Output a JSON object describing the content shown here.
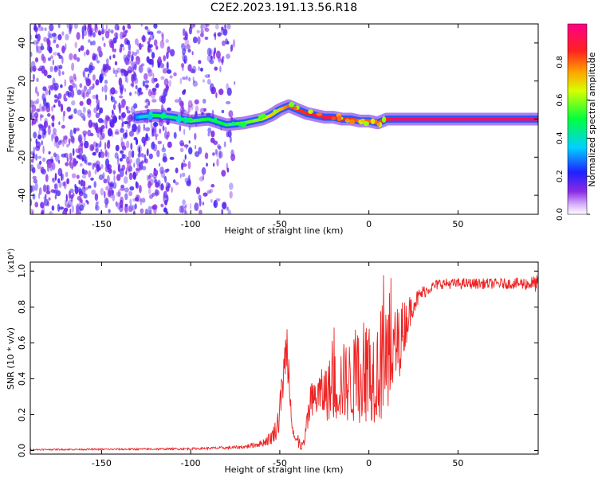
{
  "title": "C2E2.2023.191.13.56.R18",
  "chart_data": [
    {
      "type": "heatmap",
      "title": "C2E2.2023.191.13.56.R18",
      "xlabel": "Height of straight line (km)",
      "ylabel": "Frequency (Hz)",
      "xlim": [
        -190,
        95
      ],
      "ylim": [
        -50,
        50
      ],
      "xticks": [
        -150,
        -100,
        -50,
        0,
        50
      ],
      "yticks": [
        -40,
        -20,
        0,
        20,
        40
      ],
      "xtick_labels": [
        "-150",
        "-100",
        "-50",
        "0",
        "50"
      ],
      "ytick_labels": [
        "-40",
        "-20",
        "0",
        "20",
        "40"
      ],
      "colorbar": {
        "label": "Normalized spectral amplitude",
        "range": [
          0,
          1
        ],
        "ticks": [
          0.0,
          0.2,
          0.4,
          0.6,
          0.8
        ],
        "tick_labels": [
          "0.0",
          "0.2",
          "0.4",
          "0.6",
          "0.8"
        ],
        "colormap": "rainbow (violet-blue-cyan-green-yellow-orange-red-magenta)"
      },
      "noise_region_km": [
        -190,
        -75
      ],
      "ridge": {
        "x": [
          -130,
          -120,
          -110,
          -100,
          -90,
          -80,
          -70,
          -60,
          -55,
          -50,
          -45,
          -40,
          -35,
          -30,
          -25,
          -20,
          -15,
          -10,
          -5,
          0,
          5,
          10,
          15,
          30,
          50,
          70,
          95
        ],
        "y": [
          1,
          2,
          1,
          -1,
          0,
          -3,
          -2,
          0,
          2,
          5,
          7,
          5,
          3,
          2,
          1,
          1,
          0,
          0,
          -1,
          -1,
          -2,
          0,
          0,
          0,
          0,
          0,
          0
        ],
        "amplitude": [
          0.3,
          0.5,
          0.45,
          0.55,
          0.5,
          0.5,
          0.55,
          0.6,
          0.7,
          0.7,
          0.8,
          0.85,
          0.85,
          0.9,
          0.9,
          0.9,
          0.85,
          0.85,
          0.8,
          0.8,
          0.8,
          0.85,
          0.95,
          0.95,
          0.95,
          0.95,
          0.95
        ]
      }
    },
    {
      "type": "line",
      "xlabel": "Height of straight line (km)",
      "ylabel": "SNR (10 * v/v)",
      "y_multiplier_label": "(x10⁴)",
      "xlim": [
        -190,
        95
      ],
      "ylim": [
        -0.02,
        1.05
      ],
      "xticks": [
        -150,
        -100,
        -50,
        0,
        50
      ],
      "yticks": [
        0.0,
        0.2,
        0.4,
        0.6,
        0.8,
        1.0
      ],
      "xtick_labels": [
        "-150",
        "-100",
        "-50",
        "0",
        "50"
      ],
      "ytick_labels": [
        "0.0",
        "0.2",
        "0.4",
        "0.6",
        "0.8",
        "1.0"
      ],
      "line_color": "#ee2222",
      "series_shape": {
        "x": [
          -190,
          -120,
          -100,
          -80,
          -70,
          -60,
          -55,
          -52,
          -50,
          -48,
          -46,
          -44,
          -42,
          -40,
          -38,
          -36,
          -34,
          -30,
          -25,
          -20,
          -15,
          -10,
          -5,
          0,
          5,
          8,
          10,
          15,
          20,
          25,
          30,
          35,
          40,
          50,
          60,
          70,
          80,
          90,
          95
        ],
        "y": [
          0.005,
          0.008,
          0.01,
          0.015,
          0.02,
          0.04,
          0.07,
          0.12,
          0.2,
          0.42,
          0.6,
          0.3,
          0.08,
          0.04,
          0.02,
          0.05,
          0.2,
          0.3,
          0.32,
          0.35,
          0.38,
          0.38,
          0.4,
          0.42,
          0.45,
          0.5,
          0.45,
          0.55,
          0.7,
          0.82,
          0.88,
          0.91,
          0.93,
          0.93,
          0.93,
          0.93,
          0.93,
          0.93,
          0.93
        ],
        "spread": [
          0.004,
          0.005,
          0.006,
          0.008,
          0.01,
          0.02,
          0.04,
          0.06,
          0.1,
          0.12,
          0.15,
          0.12,
          0.05,
          0.03,
          0.02,
          0.04,
          0.08,
          0.12,
          0.15,
          0.2,
          0.22,
          0.24,
          0.25,
          0.26,
          0.3,
          0.35,
          0.3,
          0.25,
          0.15,
          0.06,
          0.04,
          0.03,
          0.03,
          0.03,
          0.03,
          0.03,
          0.03,
          0.04,
          0.05
        ]
      }
    }
  ]
}
